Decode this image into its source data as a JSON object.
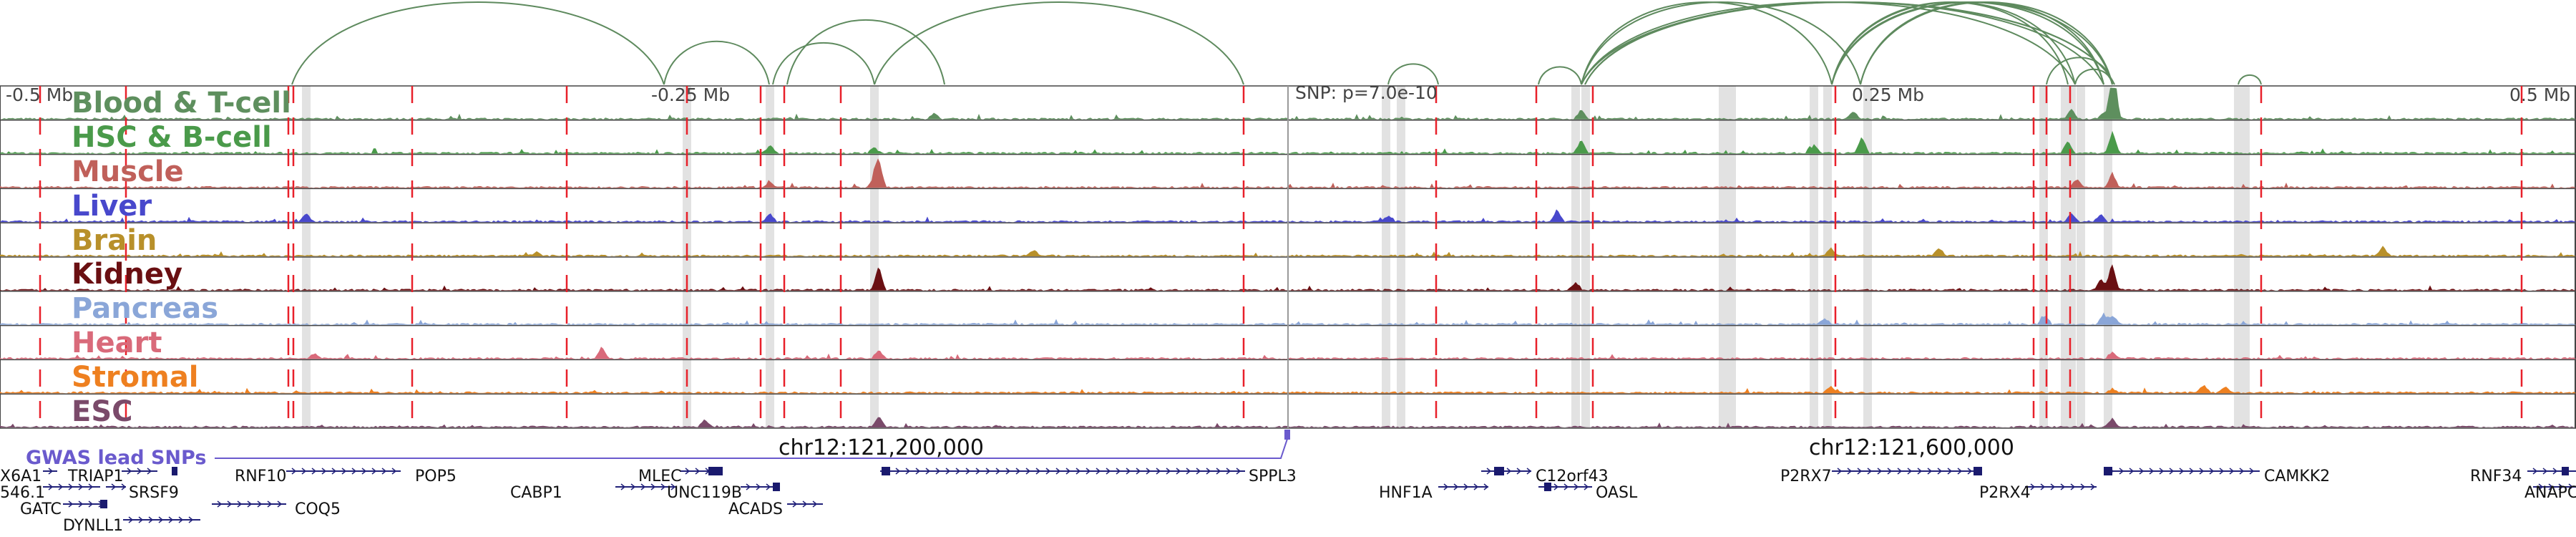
{
  "axis": {
    "left": "-0.5 Mb",
    "left_mid": "-0.25 Mb",
    "snp_text": "SNP: p=7.0e-10",
    "right_mid": "0.25 Mb",
    "right": "0.5 Mb"
  },
  "chromosome_labels": [
    "chr12:121,200,000",
    "chr12:121,600,000"
  ],
  "gwas_label": "GWAS lead SNPs",
  "tracks": [
    {
      "name": "Blood & T-cell",
      "color": "#5e8f5e"
    },
    {
      "name": "HSC & B-cell",
      "color": "#4a9a4a"
    },
    {
      "name": "Muscle",
      "color": "#c0605a"
    },
    {
      "name": "Liver",
      "color": "#4848cc"
    },
    {
      "name": "Brain",
      "color": "#b8902a"
    },
    {
      "name": "Kidney",
      "color": "#6a0f12"
    },
    {
      "name": "Pancreas",
      "color": "#8aa6d8"
    },
    {
      "name": "Heart",
      "color": "#d96a7a"
    },
    {
      "name": "Stromal",
      "color": "#ee8020"
    },
    {
      "name": "ESC",
      "color": "#7a4a6a"
    }
  ],
  "genes": [
    {
      "name": "X6A1"
    },
    {
      "name": "TRIAP1"
    },
    {
      "name": "546.1"
    },
    {
      "name": "SRSF9"
    },
    {
      "name": "GATC"
    },
    {
      "name": "COQ5"
    },
    {
      "name": "DYNLL1"
    },
    {
      "name": "RNF10"
    },
    {
      "name": "POP5"
    },
    {
      "name": "CABP1"
    },
    {
      "name": "MLEC"
    },
    {
      "name": "UNC119B"
    },
    {
      "name": "ACADS"
    },
    {
      "name": "SPPL3"
    },
    {
      "name": "HNF1A"
    },
    {
      "name": "C12orf43"
    },
    {
      "name": "OASL"
    },
    {
      "name": "P2RX7"
    },
    {
      "name": "P2RX4"
    },
    {
      "name": "CAMKK2"
    },
    {
      "name": "RNF34"
    },
    {
      "name": "ANAPC"
    }
  ]
}
